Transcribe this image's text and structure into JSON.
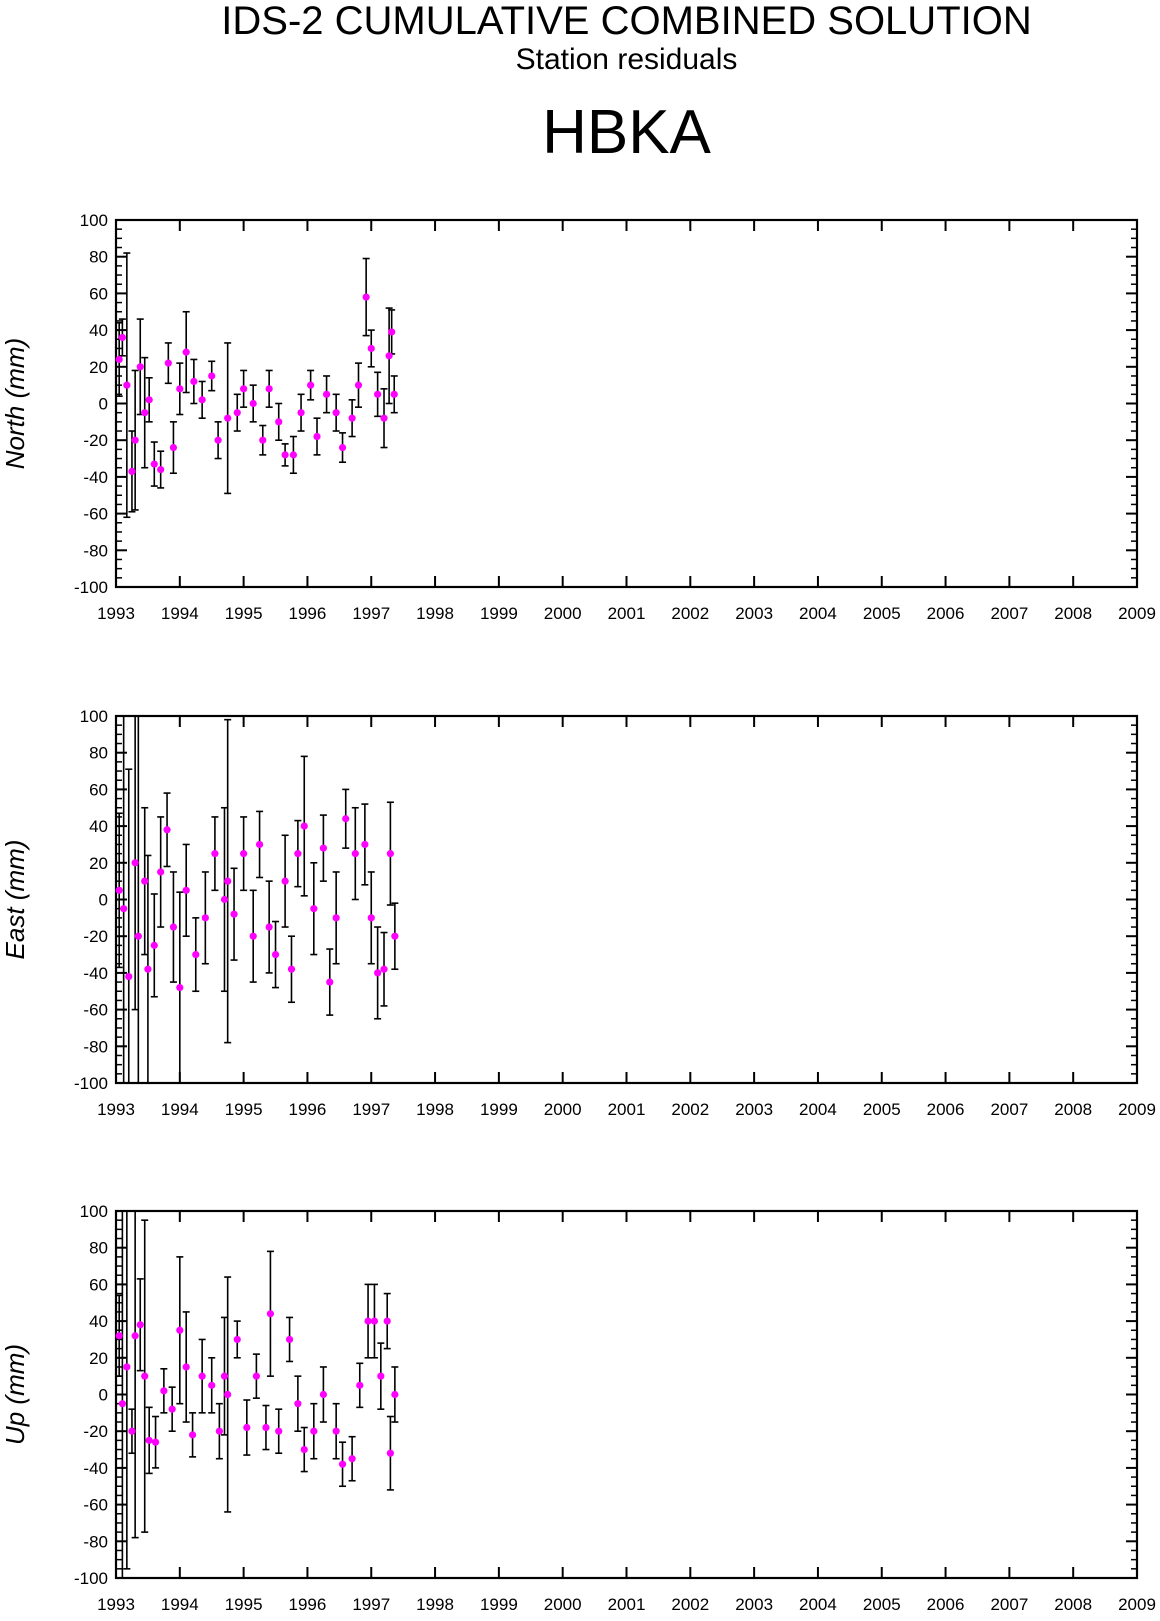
{
  "title": "IDS-2 CUMULATIVE COMBINED SOLUTION",
  "subtitle": "Station residuals",
  "station": "HBKA",
  "colors": {
    "marker": "#ff00ff",
    "errorbar": "#000000",
    "axis": "#000000"
  },
  "chart_data": [
    {
      "type": "scatter",
      "ylabel": "North (mm)",
      "xlim": [
        1993,
        2009
      ],
      "ylim": [
        -100,
        100
      ],
      "xticks": [
        "1993",
        "1994",
        "1995",
        "1996",
        "1997",
        "1998",
        "1999",
        "2000",
        "2001",
        "2002",
        "2003",
        "2004",
        "2005",
        "2006",
        "2007",
        "2008",
        "2009"
      ],
      "yticks": [
        "100",
        "80",
        "60",
        "40",
        "20",
        "0",
        "-20",
        "-40",
        "-60",
        "-80",
        "-100"
      ],
      "grid": false,
      "series": [
        {
          "markers": "magenta dots with black error bars",
          "points": [
            {
              "x": 1993.05,
              "y": 24,
              "err": 20
            },
            {
              "x": 1993.1,
              "y": 36,
              "err": 10
            },
            {
              "x": 1993.17,
              "y": 10,
              "err": 72
            },
            {
              "x": 1993.25,
              "y": -37,
              "err": 22
            },
            {
              "x": 1993.3,
              "y": -20,
              "err": 38
            },
            {
              "x": 1993.38,
              "y": 20,
              "err": 26
            },
            {
              "x": 1993.45,
              "y": -5,
              "err": 30
            },
            {
              "x": 1993.52,
              "y": 2,
              "err": 12
            },
            {
              "x": 1993.6,
              "y": -33,
              "err": 12
            },
            {
              "x": 1993.7,
              "y": -36,
              "err": 10
            },
            {
              "x": 1993.82,
              "y": 22,
              "err": 11
            },
            {
              "x": 1993.9,
              "y": -24,
              "err": 14
            },
            {
              "x": 1994.0,
              "y": 8,
              "err": 14
            },
            {
              "x": 1994.1,
              "y": 28,
              "err": 22
            },
            {
              "x": 1994.22,
              "y": 12,
              "err": 12
            },
            {
              "x": 1994.35,
              "y": 2,
              "err": 10
            },
            {
              "x": 1994.5,
              "y": 15,
              "err": 8
            },
            {
              "x": 1994.6,
              "y": -20,
              "err": 10
            },
            {
              "x": 1994.75,
              "y": -8,
              "err": 41
            },
            {
              "x": 1994.9,
              "y": -5,
              "err": 10
            },
            {
              "x": 1995.0,
              "y": 8,
              "err": 10
            },
            {
              "x": 1995.15,
              "y": 0,
              "err": 10
            },
            {
              "x": 1995.3,
              "y": -20,
              "err": 8
            },
            {
              "x": 1995.4,
              "y": 8,
              "err": 10
            },
            {
              "x": 1995.55,
              "y": -10,
              "err": 10
            },
            {
              "x": 1995.65,
              "y": -28,
              "err": 6
            },
            {
              "x": 1995.78,
              "y": -28,
              "err": 10
            },
            {
              "x": 1995.9,
              "y": -5,
              "err": 10
            },
            {
              "x": 1996.05,
              "y": 10,
              "err": 8
            },
            {
              "x": 1996.15,
              "y": -18,
              "err": 10
            },
            {
              "x": 1996.3,
              "y": 5,
              "err": 10
            },
            {
              "x": 1996.45,
              "y": -5,
              "err": 10
            },
            {
              "x": 1996.55,
              "y": -24,
              "err": 8
            },
            {
              "x": 1996.7,
              "y": -8,
              "err": 10
            },
            {
              "x": 1996.8,
              "y": 10,
              "err": 12
            },
            {
              "x": 1996.92,
              "y": 58,
              "err": 21
            },
            {
              "x": 1997.0,
              "y": 30,
              "err": 10
            },
            {
              "x": 1997.1,
              "y": 5,
              "err": 12
            },
            {
              "x": 1997.2,
              "y": -8,
              "err": 16
            },
            {
              "x": 1997.28,
              "y": 26,
              "err": 26
            },
            {
              "x": 1997.32,
              "y": 39,
              "err": 12
            },
            {
              "x": 1997.36,
              "y": 5,
              "err": 10
            }
          ]
        }
      ]
    },
    {
      "type": "scatter",
      "ylabel": "East (mm)",
      "xlim": [
        1993,
        2009
      ],
      "ylim": [
        -100,
        100
      ],
      "xticks": [
        "1993",
        "1994",
        "1995",
        "1996",
        "1997",
        "1998",
        "1999",
        "2000",
        "2001",
        "2002",
        "2003",
        "2004",
        "2005",
        "2006",
        "2007",
        "2008",
        "2009"
      ],
      "yticks": [
        "100",
        "80",
        "60",
        "40",
        "20",
        "0",
        "-20",
        "-40",
        "-60",
        "-80",
        "-100"
      ],
      "grid": false,
      "series": [
        {
          "markers": "magenta dots with black error bars",
          "points": [
            {
              "x": 1993.05,
              "y": 5,
              "err": 42
            },
            {
              "x": 1993.12,
              "y": -5,
              "err": 110
            },
            {
              "x": 1993.2,
              "y": -42,
              "err": 113
            },
            {
              "x": 1993.3,
              "y": 20,
              "err": 80
            },
            {
              "x": 1993.35,
              "y": -20,
              "err": 120
            },
            {
              "x": 1993.45,
              "y": 10,
              "err": 40
            },
            {
              "x": 1993.5,
              "y": -38,
              "err": 62
            },
            {
              "x": 1993.6,
              "y": -25,
              "err": 28
            },
            {
              "x": 1993.7,
              "y": 15,
              "err": 30
            },
            {
              "x": 1993.8,
              "y": 38,
              "err": 20
            },
            {
              "x": 1993.9,
              "y": -15,
              "err": 30
            },
            {
              "x": 1994.0,
              "y": -48,
              "err": 52
            },
            {
              "x": 1994.1,
              "y": 5,
              "err": 25
            },
            {
              "x": 1994.25,
              "y": -30,
              "err": 20
            },
            {
              "x": 1994.4,
              "y": -10,
              "err": 25
            },
            {
              "x": 1994.55,
              "y": 25,
              "err": 20
            },
            {
              "x": 1994.7,
              "y": 0,
              "err": 50
            },
            {
              "x": 1994.75,
              "y": 10,
              "err": 88
            },
            {
              "x": 1994.85,
              "y": -8,
              "err": 25
            },
            {
              "x": 1995.0,
              "y": 25,
              "err": 20
            },
            {
              "x": 1995.15,
              "y": -20,
              "err": 25
            },
            {
              "x": 1995.25,
              "y": 30,
              "err": 18
            },
            {
              "x": 1995.4,
              "y": -15,
              "err": 25
            },
            {
              "x": 1995.5,
              "y": -30,
              "err": 18
            },
            {
              "x": 1995.65,
              "y": 10,
              "err": 25
            },
            {
              "x": 1995.75,
              "y": -38,
              "err": 18
            },
            {
              "x": 1995.85,
              "y": 25,
              "err": 18
            },
            {
              "x": 1995.95,
              "y": 40,
              "err": 38
            },
            {
              "x": 1996.1,
              "y": -5,
              "err": 25
            },
            {
              "x": 1996.25,
              "y": 28,
              "err": 18
            },
            {
              "x": 1996.35,
              "y": -45,
              "err": 18
            },
            {
              "x": 1996.45,
              "y": -10,
              "err": 25
            },
            {
              "x": 1996.6,
              "y": 44,
              "err": 16
            },
            {
              "x": 1996.75,
              "y": 25,
              "err": 25
            },
            {
              "x": 1996.9,
              "y": 30,
              "err": 22
            },
            {
              "x": 1997.0,
              "y": -10,
              "err": 25
            },
            {
              "x": 1997.1,
              "y": -40,
              "err": 25
            },
            {
              "x": 1997.2,
              "y": -38,
              "err": 20
            },
            {
              "x": 1997.3,
              "y": 25,
              "err": 28
            },
            {
              "x": 1997.37,
              "y": -20,
              "err": 18
            }
          ]
        }
      ]
    },
    {
      "type": "scatter",
      "ylabel": "Up (mm)",
      "xlim": [
        1993,
        2009
      ],
      "ylim": [
        -100,
        100
      ],
      "xticks": [
        "1993",
        "1994",
        "1995",
        "1996",
        "1997",
        "1998",
        "1999",
        "2000",
        "2001",
        "2002",
        "2003",
        "2004",
        "2005",
        "2006",
        "2007",
        "2008",
        "2009"
      ],
      "yticks": [
        "100",
        "80",
        "60",
        "40",
        "20",
        "0",
        "-20",
        "-40",
        "-60",
        "-80",
        "-100"
      ],
      "grid": false,
      "series": [
        {
          "markers": "magenta dots with black error bars",
          "points": [
            {
              "x": 1993.05,
              "y": 32,
              "err": 22
            },
            {
              "x": 1993.1,
              "y": -5,
              "err": 105
            },
            {
              "x": 1993.17,
              "y": 15,
              "err": 110
            },
            {
              "x": 1993.25,
              "y": -20,
              "err": 12
            },
            {
              "x": 1993.3,
              "y": 32,
              "err": 110
            },
            {
              "x": 1993.38,
              "y": 38,
              "err": 25
            },
            {
              "x": 1993.45,
              "y": 10,
              "err": 85
            },
            {
              "x": 1993.52,
              "y": -25,
              "err": 18
            },
            {
              "x": 1993.62,
              "y": -26,
              "err": 14
            },
            {
              "x": 1993.75,
              "y": 2,
              "err": 12
            },
            {
              "x": 1993.88,
              "y": -8,
              "err": 12
            },
            {
              "x": 1994.0,
              "y": 35,
              "err": 40
            },
            {
              "x": 1994.1,
              "y": 15,
              "err": 30
            },
            {
              "x": 1994.2,
              "y": -22,
              "err": 12
            },
            {
              "x": 1994.35,
              "y": 10,
              "err": 20
            },
            {
              "x": 1994.5,
              "y": 5,
              "err": 15
            },
            {
              "x": 1994.62,
              "y": -20,
              "err": 15
            },
            {
              "x": 1994.7,
              "y": 10,
              "err": 32
            },
            {
              "x": 1994.75,
              "y": 0,
              "err": 64
            },
            {
              "x": 1994.9,
              "y": 30,
              "err": 10
            },
            {
              "x": 1995.05,
              "y": -18,
              "err": 15
            },
            {
              "x": 1995.2,
              "y": 10,
              "err": 12
            },
            {
              "x": 1995.35,
              "y": -18,
              "err": 12
            },
            {
              "x": 1995.42,
              "y": 44,
              "err": 34
            },
            {
              "x": 1995.55,
              "y": -20,
              "err": 12
            },
            {
              "x": 1995.72,
              "y": 30,
              "err": 12
            },
            {
              "x": 1995.85,
              "y": -5,
              "err": 15
            },
            {
              "x": 1995.95,
              "y": -30,
              "err": 12
            },
            {
              "x": 1996.1,
              "y": -20,
              "err": 15
            },
            {
              "x": 1996.25,
              "y": 0,
              "err": 15
            },
            {
              "x": 1996.45,
              "y": -20,
              "err": 15
            },
            {
              "x": 1996.55,
              "y": -38,
              "err": 12
            },
            {
              "x": 1996.7,
              "y": -35,
              "err": 12
            },
            {
              "x": 1996.82,
              "y": 5,
              "err": 12
            },
            {
              "x": 1996.95,
              "y": 40,
              "err": 20
            },
            {
              "x": 1997.05,
              "y": 40,
              "err": 20
            },
            {
              "x": 1997.15,
              "y": 10,
              "err": 18
            },
            {
              "x": 1997.25,
              "y": 40,
              "err": 15
            },
            {
              "x": 1997.3,
              "y": -32,
              "err": 20
            },
            {
              "x": 1997.37,
              "y": 0,
              "err": 15
            }
          ]
        }
      ]
    }
  ]
}
